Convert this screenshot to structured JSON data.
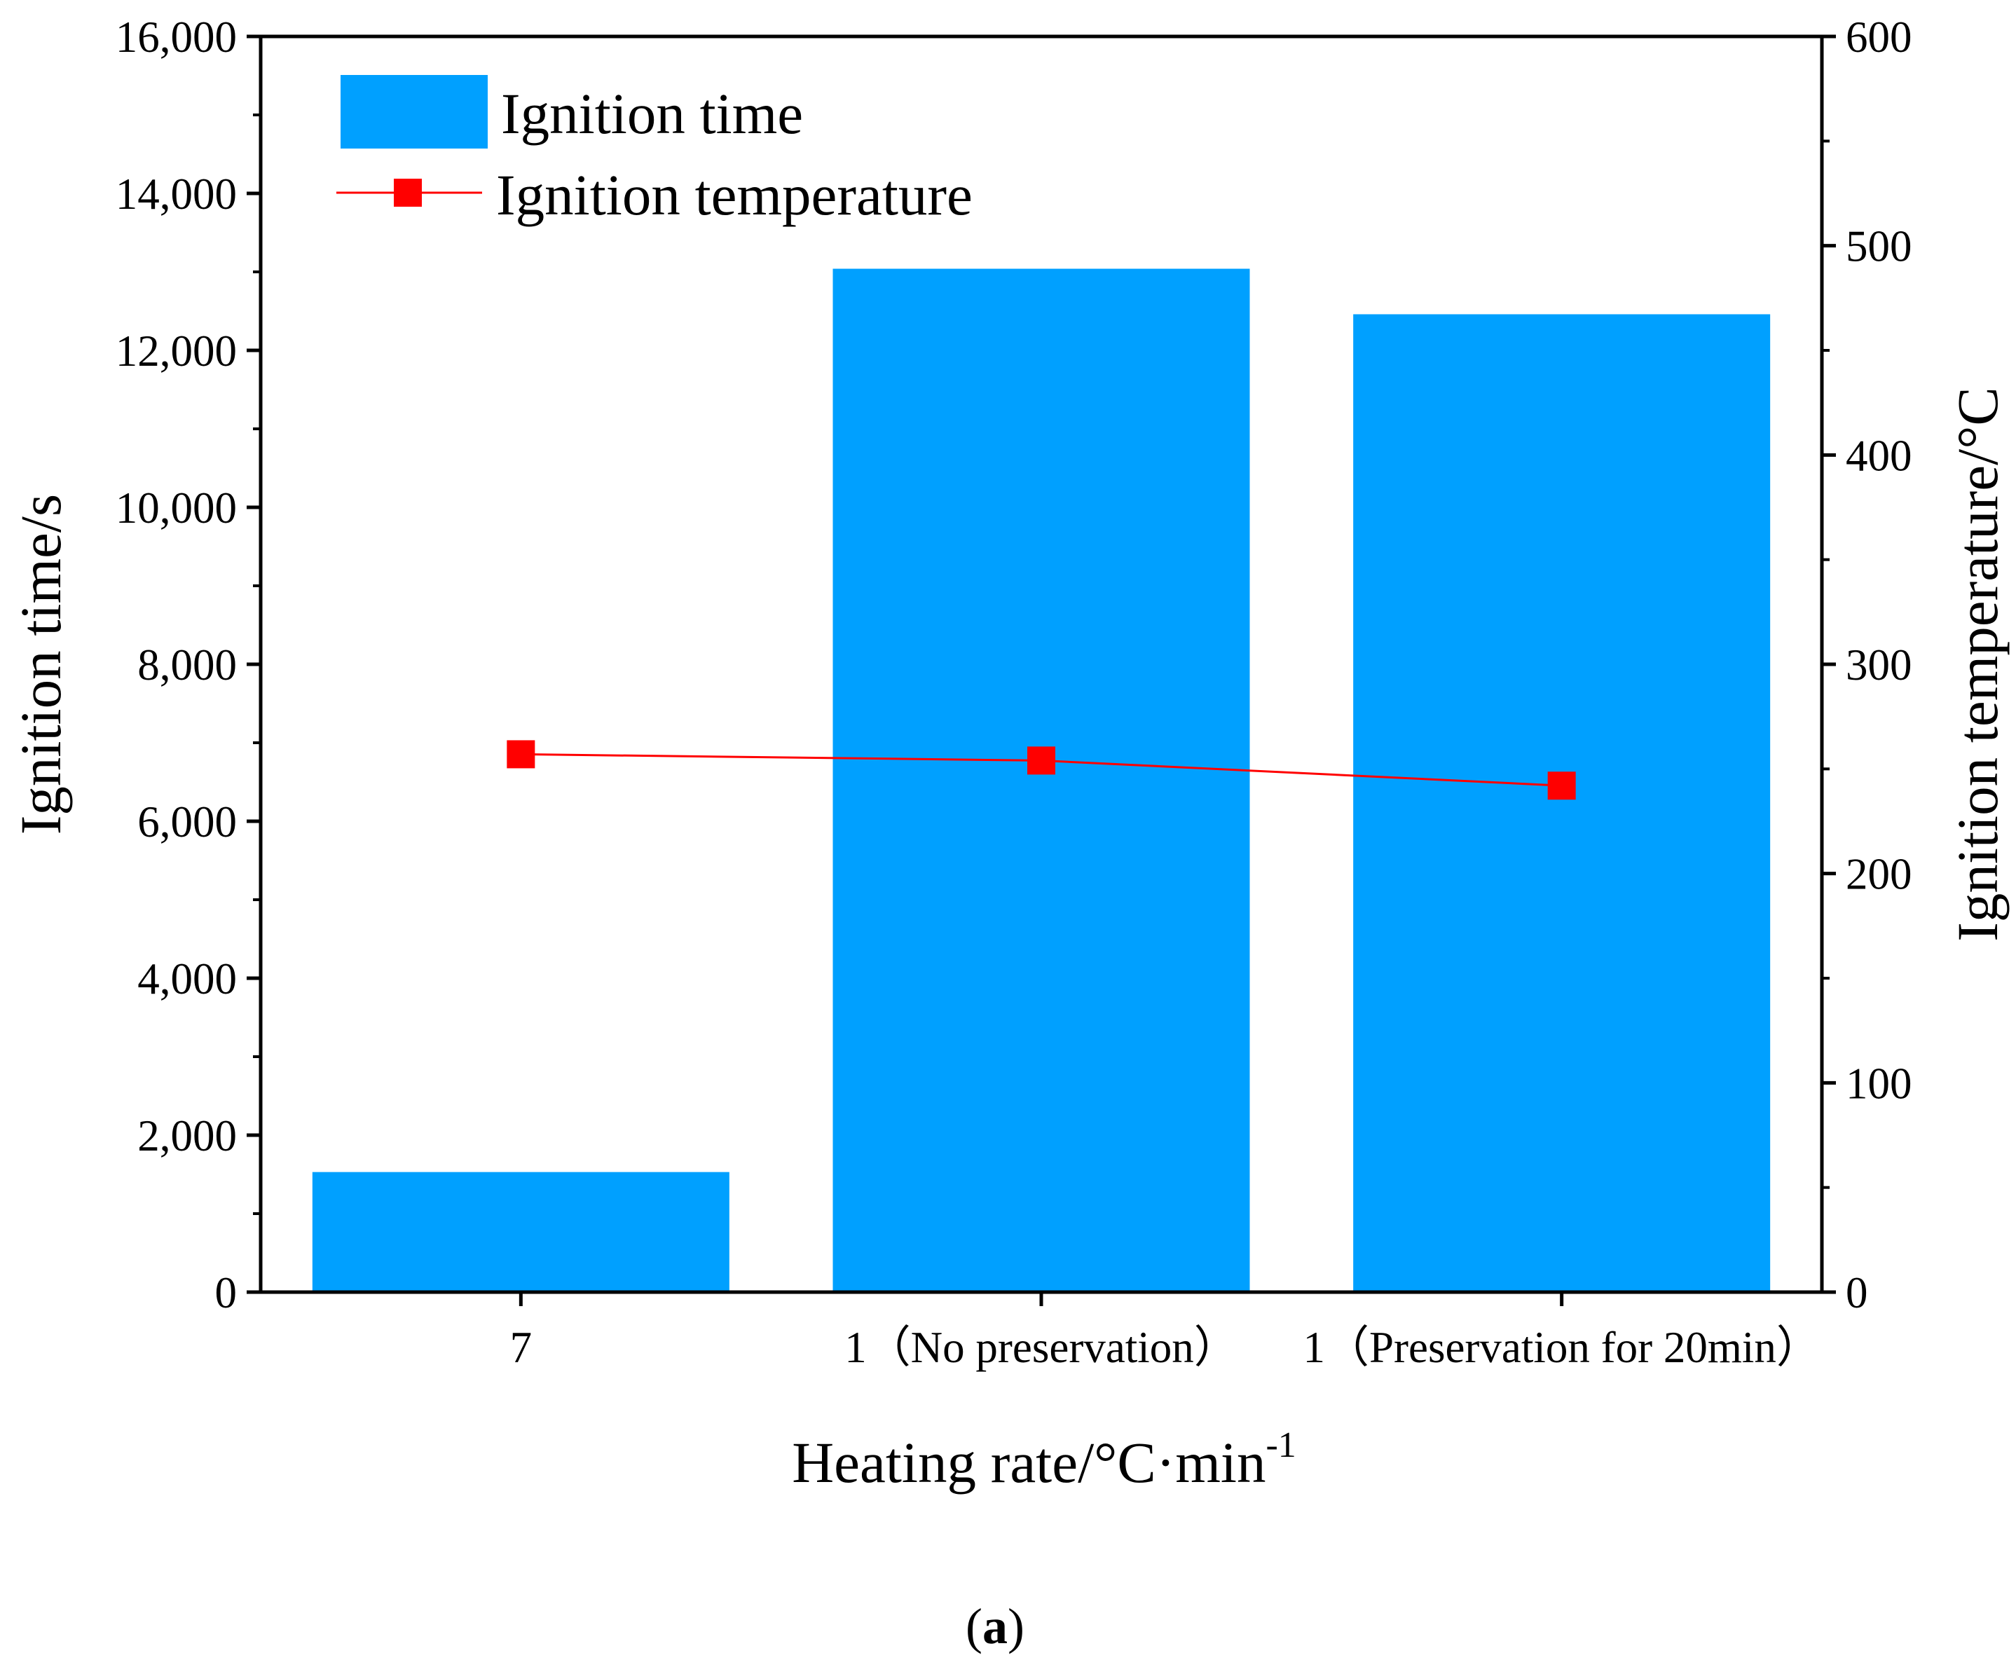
{
  "chart_data": {
    "type": "bar+line",
    "categories": [
      "7",
      "1（No preservation）",
      "1（Preservation for 20min）"
    ],
    "series": [
      {
        "name": "Ignition time",
        "type": "bar",
        "axis": "left",
        "values": [
          1530,
          13040,
          12460
        ],
        "color": "#00a0ff"
      },
      {
        "name": "Ignition temperature",
        "type": "line",
        "axis": "right",
        "values": [
          257,
          254,
          242
        ],
        "color": "#ff0000",
        "marker": "square"
      }
    ],
    "xlabel_main": "Heating rate/°C·min",
    "xlabel_sup": "-1",
    "ylabel_left": "Ignition time/s",
    "ylabel_right": "Ignition temperature/°C",
    "ylim_left": [
      0,
      16000
    ],
    "ylim_right": [
      0,
      600
    ],
    "yticks_left": [
      0,
      2000,
      4000,
      6000,
      8000,
      10000,
      12000,
      14000,
      16000
    ],
    "yticks_left_labels": [
      "0",
      "2,000",
      "4,000",
      "6,000",
      "8,000",
      "10,000",
      "12,000",
      "14,000",
      "16,000"
    ],
    "yticks_right": [
      0,
      100,
      200,
      300,
      400,
      500,
      600
    ],
    "yticks_right_labels": [
      "0",
      "100",
      "200",
      "300",
      "400",
      "500",
      "600"
    ],
    "legend_position": "top-left",
    "grid": false
  },
  "caption": {
    "open": "(",
    "letter": "a",
    "close": ")"
  }
}
